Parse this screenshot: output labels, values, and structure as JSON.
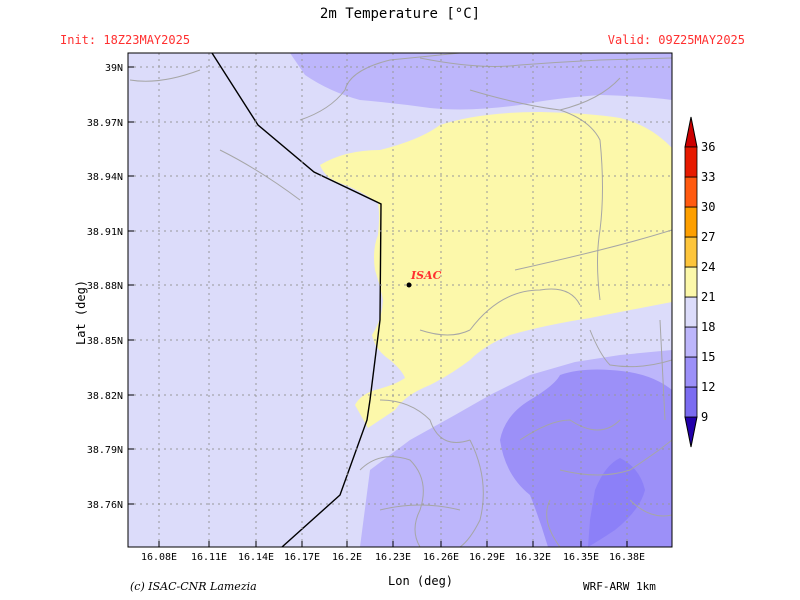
{
  "header": {
    "title": "2m Temperature [°C]",
    "init": "Init: 18Z23MAY2025",
    "valid": "Valid: 09Z25MAY2025"
  },
  "axes": {
    "xlabel": "Lon (deg)",
    "ylabel": "Lat (deg)",
    "x_ticks": [
      "16.08E",
      "16.11E",
      "16.14E",
      "16.17E",
      "16.2E",
      "16.23E",
      "16.26E",
      "16.29E",
      "16.32E",
      "16.35E",
      "16.38E"
    ],
    "y_ticks": [
      "39N",
      "38.97N",
      "38.94N",
      "38.91N",
      "38.88N",
      "38.85N",
      "38.82N",
      "38.79N",
      "38.76N"
    ]
  },
  "marker": {
    "label": "ISAC"
  },
  "colorbar": {
    "levels": [
      "9",
      "12",
      "15",
      "18",
      "21",
      "24",
      "27",
      "30",
      "33",
      "36"
    ],
    "colors": [
      "#7b6cf0",
      "#9c90f8",
      "#bdb6fb",
      "#dcdcfa",
      "#fcf8aa",
      "#fdc53c",
      "#fd9f00",
      "#ff5a10",
      "#e61a00",
      "#c00000"
    ],
    "low_color": "#2200aa",
    "high_color": "#cc0000"
  },
  "footer": {
    "credit": "(c) ISAC-CNR Lamezia",
    "model": "WRF-ARW 1km"
  }
}
